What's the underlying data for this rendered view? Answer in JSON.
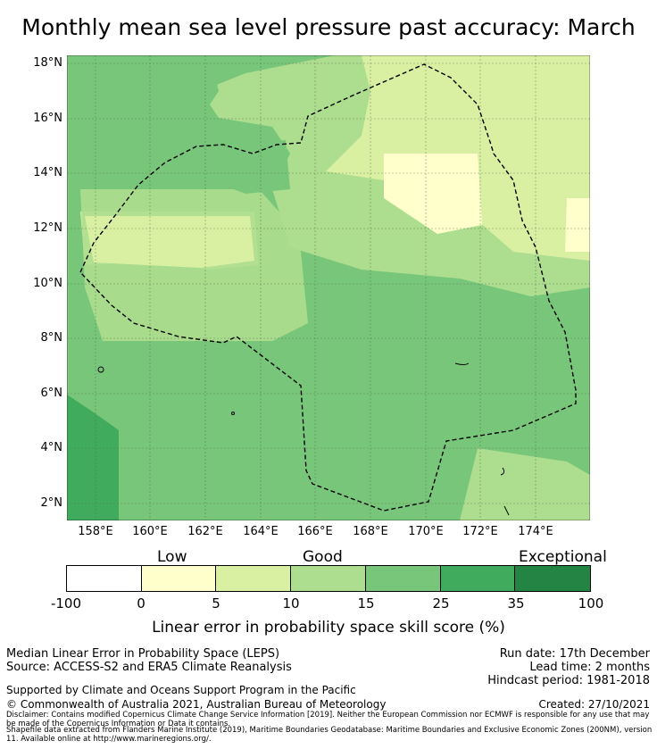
{
  "title": "Monthly mean sea level pressure past accuracy: March",
  "map": {
    "lat_labels": [
      "18°N",
      "16°N",
      "14°N",
      "12°N",
      "10°N",
      "8°N",
      "6°N",
      "4°N",
      "2°N"
    ],
    "lon_labels": [
      "158°E",
      "160°E",
      "162°E",
      "164°E",
      "166°E",
      "168°E",
      "170°E",
      "172°E",
      "174°E"
    ],
    "lat_range": [
      1.4,
      18.3
    ],
    "lon_range": [
      156.9,
      176.4
    ]
  },
  "colorbar": {
    "category_labels": [
      "Low",
      "Good",
      "Exceptional"
    ],
    "ticks": [
      "-100",
      "0",
      "5",
      "10",
      "15",
      "25",
      "35",
      "100"
    ],
    "colors": [
      "#ffffff",
      "#ffffcc",
      "#d9f0a3",
      "#addd8e",
      "#78c679",
      "#41ab5d",
      "#238443"
    ],
    "title": "Linear error in probability space skill score (%)"
  },
  "footer": {
    "left1": "Median Linear Error in Probability Space (LEPS)",
    "left2": "Source: ACCESS-S2 and ERA5 Climate Reanalysis",
    "right1": "Run date: 17th December",
    "right2": "Lead time: 2 months",
    "right3": "Hindcast period: 1981-2018",
    "support": "Supported by Climate and Oceans Support Program in the Pacific",
    "copyright": "© Commonwealth of Australia 2021, Australian Bureau of Meteorology",
    "created": "Created: 27/10/2021",
    "disclaimer1": "Disclaimer: Contains modified Copernicus Climate Change Service Information [2019]. Neither the European Commission nor ECMWF is responsible for any use that may be made of the Copernicus Information or Data it contains.",
    "disclaimer2": "Shapefile data extracted from Flanders Marine Institute (2019), Maritime Boundaries Geodatabase: Maritime Boundaries and Exclusive Economic Zones (200NM), version 11. Available online at http://www.marineregions.org/."
  }
}
